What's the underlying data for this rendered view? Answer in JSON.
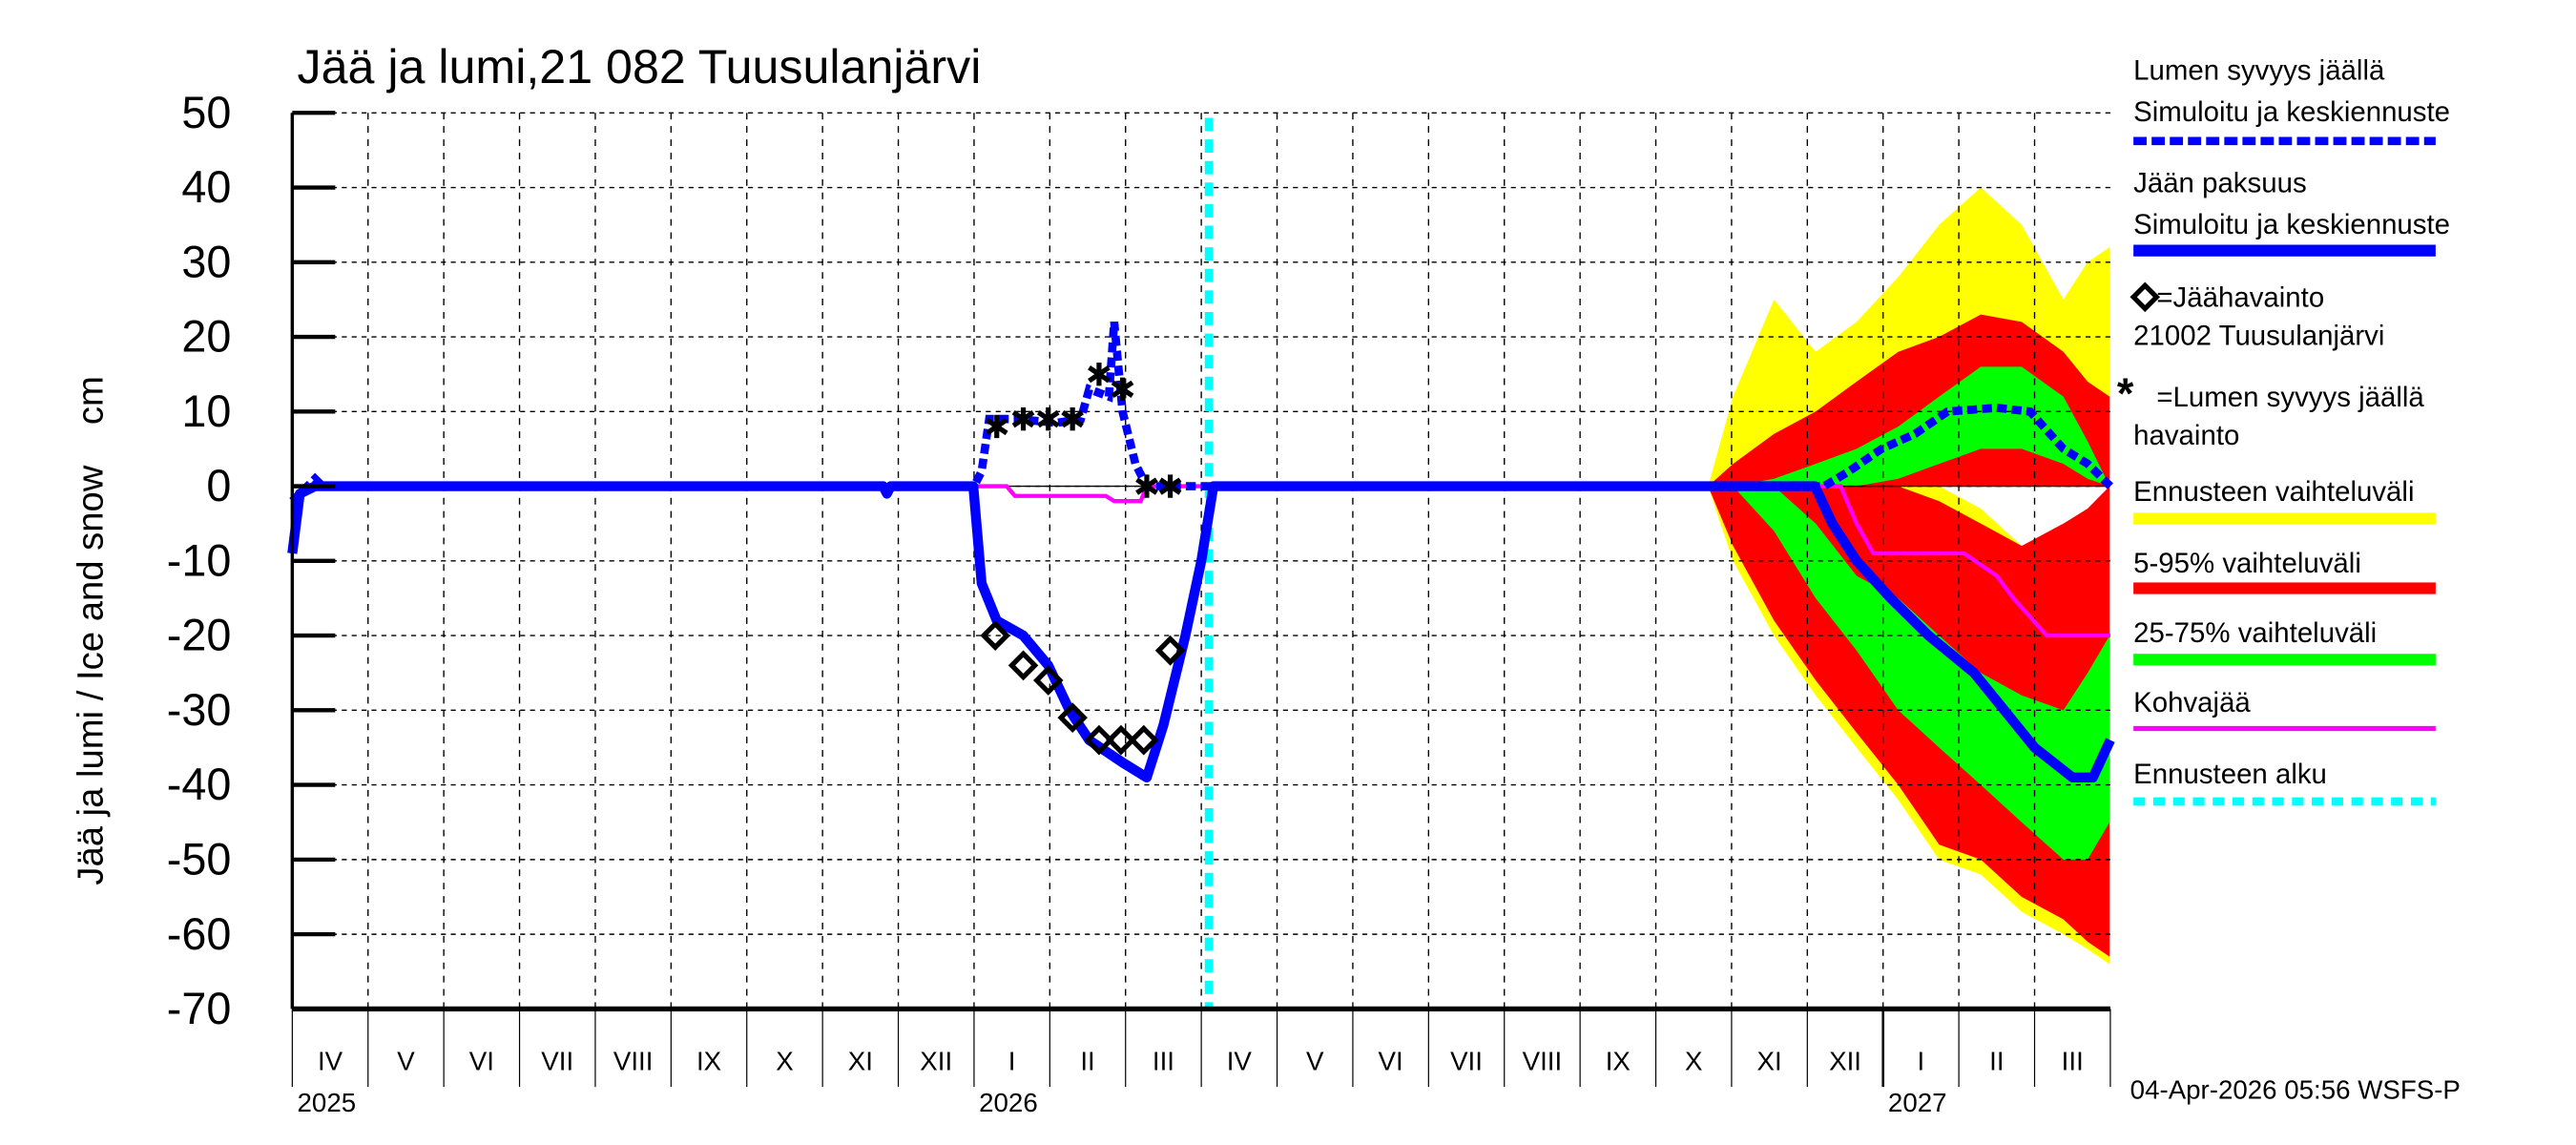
{
  "chart_data": {
    "type": "area",
    "title": "Jää ja lumi,21 082 Tuusulanjärvi",
    "ylabel": "Jää ja lumi / Ice and snow    cm",
    "ylim": [
      -70,
      50
    ],
    "yticks": [
      50,
      40,
      30,
      20,
      10,
      0,
      -10,
      -20,
      -30,
      -40,
      -50,
      -60,
      -70
    ],
    "x_unit": "months since 2025-04-01",
    "xlim": [
      0,
      24
    ],
    "month_labels": [
      "IV",
      "V",
      "VI",
      "VII",
      "VIII",
      "IX",
      "X",
      "XI",
      "XII",
      "I",
      "II",
      "III",
      "IV",
      "V",
      "VI",
      "VII",
      "VIII",
      "IX",
      "X",
      "XI",
      "XII",
      "I",
      "II",
      "III"
    ],
    "year_labels": [
      {
        "label": "2025",
        "month": 0
      },
      {
        "label": "2026",
        "month": 9
      },
      {
        "label": "2027",
        "month": 21
      }
    ],
    "grid": true,
    "forecast_start": 12.1,
    "timestamp": "04-Apr-2026 05:56 WSFS-P",
    "series": {
      "snow_sim": [
        [
          0,
          -2
        ],
        [
          0.3,
          1
        ],
        [
          0.4,
          0
        ],
        [
          9.0,
          0
        ],
        [
          9.1,
          2
        ],
        [
          9.2,
          9
        ],
        [
          9.54,
          9
        ],
        [
          10.1,
          8.5
        ],
        [
          10.41,
          9
        ],
        [
          10.52,
          13
        ],
        [
          10.78,
          12
        ],
        [
          10.85,
          22
        ],
        [
          10.96,
          10
        ],
        [
          11.13,
          3
        ],
        [
          11.28,
          0
        ],
        [
          20.22,
          0
        ],
        [
          20.55,
          2
        ],
        [
          20.98,
          5
        ],
        [
          21.42,
          7
        ],
        [
          21.85,
          10
        ],
        [
          22.5,
          10.5
        ],
        [
          22.94,
          10
        ],
        [
          23.38,
          5
        ],
        [
          23.7,
          3
        ],
        [
          24.0,
          0
        ]
      ],
      "ice_sim": [
        [
          0,
          -9
        ],
        [
          0.1,
          -1
        ],
        [
          0.3,
          0
        ],
        [
          7.8,
          0
        ],
        [
          7.85,
          -1
        ],
        [
          7.9,
          0
        ],
        [
          8.99,
          0
        ],
        [
          9.1,
          -13
        ],
        [
          9.3,
          -18
        ],
        [
          9.65,
          -20
        ],
        [
          9.98,
          -24
        ],
        [
          10.26,
          -30
        ],
        [
          10.52,
          -34
        ],
        [
          10.96,
          -37
        ],
        [
          11.28,
          -39
        ],
        [
          11.5,
          -32
        ],
        [
          11.79,
          -20
        ],
        [
          12.0,
          -10
        ],
        [
          12.16,
          0
        ],
        [
          20.1,
          0
        ],
        [
          20.33,
          -5
        ],
        [
          20.65,
          -10
        ],
        [
          21.1,
          -15
        ],
        [
          21.6,
          -20
        ],
        [
          22.2,
          -25
        ],
        [
          22.6,
          -30
        ],
        [
          23.0,
          -35
        ],
        [
          23.5,
          -39
        ],
        [
          23.77,
          -39
        ],
        [
          24.0,
          -34
        ]
      ],
      "kohva": [
        [
          0,
          0
        ],
        [
          9.43,
          0
        ],
        [
          9.54,
          -1.3
        ],
        [
          10.74,
          -1.3
        ],
        [
          10.85,
          -2
        ],
        [
          11.2,
          -2
        ],
        [
          11.28,
          0
        ],
        [
          20.44,
          0
        ],
        [
          20.65,
          -5
        ],
        [
          20.87,
          -9
        ],
        [
          22.07,
          -9
        ],
        [
          22.5,
          -12
        ],
        [
          22.72,
          -15
        ],
        [
          23.16,
          -20
        ],
        [
          24,
          -20
        ]
      ],
      "ice_obs": [
        [
          9.28,
          -20
        ],
        [
          9.65,
          -24
        ],
        [
          9.98,
          -26
        ],
        [
          10.3,
          -31
        ],
        [
          10.65,
          -34
        ],
        [
          10.94,
          -34
        ],
        [
          11.24,
          -34
        ],
        [
          11.59,
          -22
        ]
      ],
      "snow_obs": [
        [
          9.3,
          8
        ],
        [
          9.65,
          9
        ],
        [
          9.98,
          9
        ],
        [
          10.3,
          9
        ],
        [
          10.65,
          15
        ],
        [
          10.96,
          13
        ],
        [
          11.28,
          0
        ],
        [
          11.59,
          0
        ]
      ]
    },
    "bands": {
      "x": [
        18.69,
        19.02,
        19.56,
        20.11,
        20.65,
        21.2,
        21.74,
        22.29,
        22.83,
        23.38,
        23.7,
        23.99
      ],
      "snow_yellow": [
        [
          0,
          0,
          0,
          0,
          0,
          0,
          0,
          0,
          0,
          0,
          0,
          0
        ],
        [
          0,
          12,
          25,
          18,
          22,
          28,
          35,
          40,
          35,
          25,
          30,
          32
        ]
      ],
      "snow_red": [
        [
          0,
          0,
          0,
          0,
          0,
          0,
          0,
          0,
          0,
          0,
          0,
          0
        ],
        [
          0,
          3,
          7,
          10,
          14,
          18,
          20,
          23,
          22,
          18,
          14,
          12
        ]
      ],
      "snow_green": [
        [
          0,
          0,
          0,
          0,
          0,
          1,
          3,
          5,
          5,
          3,
          1,
          0
        ],
        [
          0,
          0,
          1,
          3,
          5,
          8,
          12,
          16,
          16,
          12,
          6,
          0
        ]
      ],
      "ice_yellow": [
        [
          0,
          -10,
          -20,
          -28,
          -35,
          -42,
          -50,
          -52,
          -57,
          -60,
          -62,
          -64
        ],
        [
          0,
          -5,
          0,
          0,
          0,
          0,
          0,
          -3,
          -8,
          -10,
          -5,
          -3
        ]
      ],
      "ice_red": [
        [
          0,
          -8,
          -18,
          -26,
          -33,
          -40,
          -48,
          -50,
          -55,
          -58,
          -61,
          -63
        ],
        [
          0,
          0,
          0,
          0,
          0,
          0,
          -2,
          -5,
          -8,
          -5,
          -3,
          0
        ]
      ],
      "ice_green": [
        [
          0,
          0,
          -6,
          -15,
          -22,
          -30,
          -35,
          -40,
          -45,
          -50,
          -50,
          -45
        ],
        [
          0,
          0,
          0,
          -5,
          -12,
          -15,
          -20,
          -25,
          -28,
          -30,
          -25,
          -20
        ]
      ]
    }
  },
  "legend": {
    "snow_title": "Lumen syvyys jäällä",
    "snow_sub": "Simuloitu ja keskiennuste",
    "ice_title": "Jään paksuus",
    "ice_sub": "Simuloitu ja keskiennuste",
    "ice_obs": "=Jäähavainto",
    "ice_obs_station": "21002 Tuusulanjärvi",
    "snow_obs": "=Lumen syvyys jäällä",
    "snow_obs_sub": "havainto",
    "range": "Ennusteen vaihteluväli",
    "range_5_95": "5-95% vaihteluväli",
    "range_25_75": "25-75% vaihteluväli",
    "kohva": "Kohvajää",
    "forecast_start": "Ennusteen alku"
  },
  "colors": {
    "blue": "#0000ff",
    "yellow": "#ffff00",
    "red": "#ff0000",
    "green": "#00ff00",
    "magenta": "#ff00ff",
    "cyan": "#00ffff"
  }
}
